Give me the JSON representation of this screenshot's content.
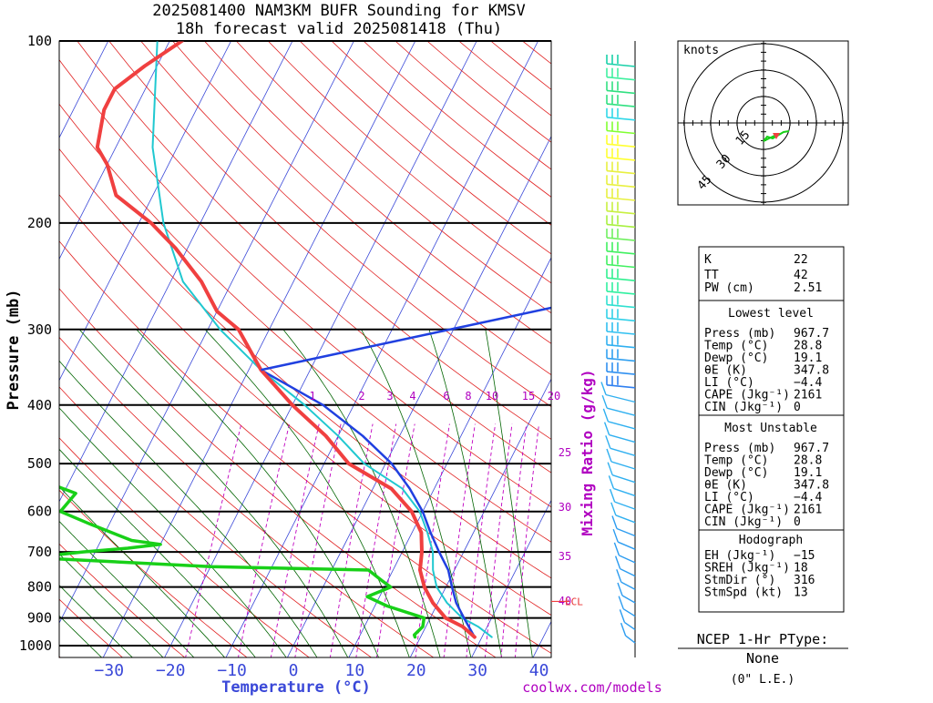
{
  "title_line1": "2025081400 NAM3KM BUFR Sounding for KMSV",
  "title_line2": "18h forecast valid 2025081418 (Thu)",
  "y_axis_label": "Pressure (mb)",
  "x_axis_label": "Temperature (°C)",
  "mixing_ratio_label": "Mixing Ratio (g/kg)",
  "site_credit": "coolwx.com/models",
  "colors": {
    "temperature": "#f04040",
    "dewpoint": "#18d018",
    "parcel": "#2040e0",
    "virtual_temp": "#20c8d0",
    "isotherm": "#3a48d8",
    "dry_adiabat": "#e02020",
    "moist_adiabat": "#006400",
    "mixing_ratio": "#c000c0"
  },
  "chart_data": {
    "type": "line",
    "title": "2025081400 NAM3KM BUFR Sounding for KMSV",
    "subtitle": "18h forecast valid 2025081418 (Thu)",
    "xlabel": "Temperature (°C)",
    "ylabel": "Pressure (mb)",
    "y_scale": "log",
    "x_skewed": true,
    "xlim": [
      -40,
      40
    ],
    "ylim": [
      1050,
      100
    ],
    "pressure_ticks": [
      {
        "p": 100,
        "label": "100"
      },
      {
        "p": 200,
        "label": "200"
      },
      {
        "p": 300,
        "label": "300"
      },
      {
        "p": 400,
        "label": "400"
      },
      {
        "p": 500,
        "label": "500"
      },
      {
        "p": 600,
        "label": "600"
      },
      {
        "p": 700,
        "label": "700"
      },
      {
        "p": 800,
        "label": "800"
      },
      {
        "p": 900,
        "label": "900"
      },
      {
        "p": 1000,
        "label": "1000"
      }
    ],
    "temperature_ticks": [
      {
        "t": -30,
        "label": "−30"
      },
      {
        "t": -20,
        "label": "−20"
      },
      {
        "t": -10,
        "label": "−10"
      },
      {
        "t": 0,
        "label": "0"
      },
      {
        "t": 10,
        "label": "10"
      },
      {
        "t": 20,
        "label": "20"
      },
      {
        "t": 30,
        "label": "30"
      },
      {
        "t": 40,
        "label": "40"
      }
    ],
    "mixing_ratio_labels": [
      "1",
      "2",
      "3",
      "4",
      "6",
      "8",
      "10",
      "15",
      "20",
      "25",
      "30",
      "35",
      "40"
    ],
    "series": [
      {
        "key": "temperature",
        "x": [
          28.8,
          26.0,
          22.5,
          19.2,
          16.5,
          14.4,
          13.2,
          11.5,
          8.2,
          3.0,
          -6.0,
          -12.0,
          -20.0,
          -28.0,
          -35.0,
          -40.0,
          -45.0,
          -52.0,
          -58.0,
          -66.0,
          -70.0,
          -73.0,
          -75.0,
          -75.0,
          -72.0,
          -68.0
        ],
        "p": [
          968,
          930,
          900,
          850,
          800,
          750,
          700,
          650,
          600,
          550,
          500,
          450,
          400,
          350,
          300,
          280,
          250,
          220,
          200,
          180,
          160,
          150,
          130,
          120,
          110,
          100
        ]
      },
      {
        "key": "dewpoint",
        "x": [
          19.1,
          18.8,
          19.5,
          19.0,
          12.0,
          8.0,
          11.0,
          9.0,
          6.0,
          -20.0,
          -50.0,
          -42.0,
          -35.0,
          -30.0,
          -35.0,
          -43.0,
          -49.0,
          -48.0,
          -58.0,
          -64.0,
          -72.0,
          -71.0,
          -72.0,
          -80.0,
          -80.0,
          -78.0,
          -78.0,
          -78.0,
          -82.0,
          -80.0,
          -82.0,
          -82.0,
          -84.0
        ],
        "p": [
          968,
          960,
          930,
          900,
          860,
          830,
          800,
          780,
          750,
          740,
          715,
          700,
          690,
          680,
          670,
          630,
          600,
          560,
          520,
          510,
          500,
          480,
          460,
          450,
          430,
          400,
          380,
          350,
          320,
          300,
          280,
          260,
          240
        ]
      },
      {
        "key": "parcel",
        "x": [
          28.8,
          25.5,
          23.0,
          21.0,
          19.0,
          16.0,
          13.0,
          10.0,
          6.0,
          1.0,
          -6.0,
          -15.0,
          -28.0
        ],
        "p": [
          968,
          900,
          850,
          800,
          750,
          700,
          650,
          600,
          550,
          500,
          450,
          400,
          350
        ]
      },
      {
        "key": "virtual_temp",
        "x": [
          31.6,
          28.5,
          25.2,
          21.5,
          18.5,
          16.5,
          15.0,
          12.5,
          9.5,
          4.8,
          -3.5,
          -10.0,
          -18.0,
          -28.0,
          -38.0,
          -48.0,
          -56.0,
          -64.0,
          -72.0
        ],
        "p": [
          968,
          930,
          900,
          850,
          800,
          750,
          700,
          650,
          600,
          550,
          500,
          450,
          400,
          350,
          300,
          250,
          200,
          150,
          100
        ]
      }
    ],
    "lcl": {
      "label": "LCL",
      "p": 845
    }
  },
  "hodograph": {
    "units_label": "knots",
    "ring_labels": [
      "15",
      "30",
      "45"
    ],
    "storm_motion": {
      "dir_deg": 316,
      "speed_kt": 13
    }
  },
  "indices": {
    "header_rows": [
      {
        "name": "K",
        "value": "22"
      },
      {
        "name": "TT",
        "value": "42"
      },
      {
        "name": "PW (cm)",
        "value": "2.51"
      }
    ],
    "lowest_level": {
      "title": "Lowest level",
      "rows": [
        {
          "name": "Press (mb)",
          "value": "967.7"
        },
        {
          "name": "Temp (°C)",
          "value": "28.8"
        },
        {
          "name": "Dewp (°C)",
          "value": "19.1"
        },
        {
          "name": "θE (K)",
          "value": "347.8"
        },
        {
          "name": "LI (°C)",
          "value": "−4.4"
        },
        {
          "name": "CAPE (Jkg⁻¹)",
          "value": "2161"
        },
        {
          "name": "CIN (Jkg⁻¹)",
          "value": "0"
        }
      ]
    },
    "most_unstable": {
      "title": "Most Unstable",
      "rows": [
        {
          "name": "Press (mb)",
          "value": "967.7"
        },
        {
          "name": "Temp (°C)",
          "value": "28.8"
        },
        {
          "name": "Dewp (°C)",
          "value": "19.1"
        },
        {
          "name": "θE (K)",
          "value": "347.8"
        },
        {
          "name": "LI (°C)",
          "value": "−4.4"
        },
        {
          "name": "CAPE (Jkg⁻¹)",
          "value": "2161"
        },
        {
          "name": "CIN (Jkg⁻¹)",
          "value": "0"
        }
      ]
    },
    "hodograph_block": {
      "title": "Hodograph",
      "rows": [
        {
          "name": "EH (Jkg⁻¹)",
          "value": "−15"
        },
        {
          "name": "SREH (Jkg⁻¹)",
          "value": "18"
        },
        {
          "name": "StmDir (°)",
          "value": "316"
        },
        {
          "name": "StmSpd (kt)",
          "value": "13"
        }
      ]
    }
  },
  "ptype": {
    "title": "NCEP 1-Hr PType:",
    "value": "None",
    "note": "(0\" L.E.)"
  },
  "wind_barb_colors": [
    "#19d0a8",
    "#40f0a0",
    "#30e080",
    "#30e080",
    "#30d8e8",
    "#80ff30",
    "#ffff30",
    "#ffff30",
    "#e8f040",
    "#e8f040",
    "#e8f040",
    "#c8f040",
    "#a8f040",
    "#70f060",
    "#40f060",
    "#40f060",
    "#30f090",
    "#30f0a0",
    "#30e0d0",
    "#30d0e8",
    "#30c0f0",
    "#30b0f0",
    "#30a0f0",
    "#3090f0",
    "#3080f0"
  ]
}
